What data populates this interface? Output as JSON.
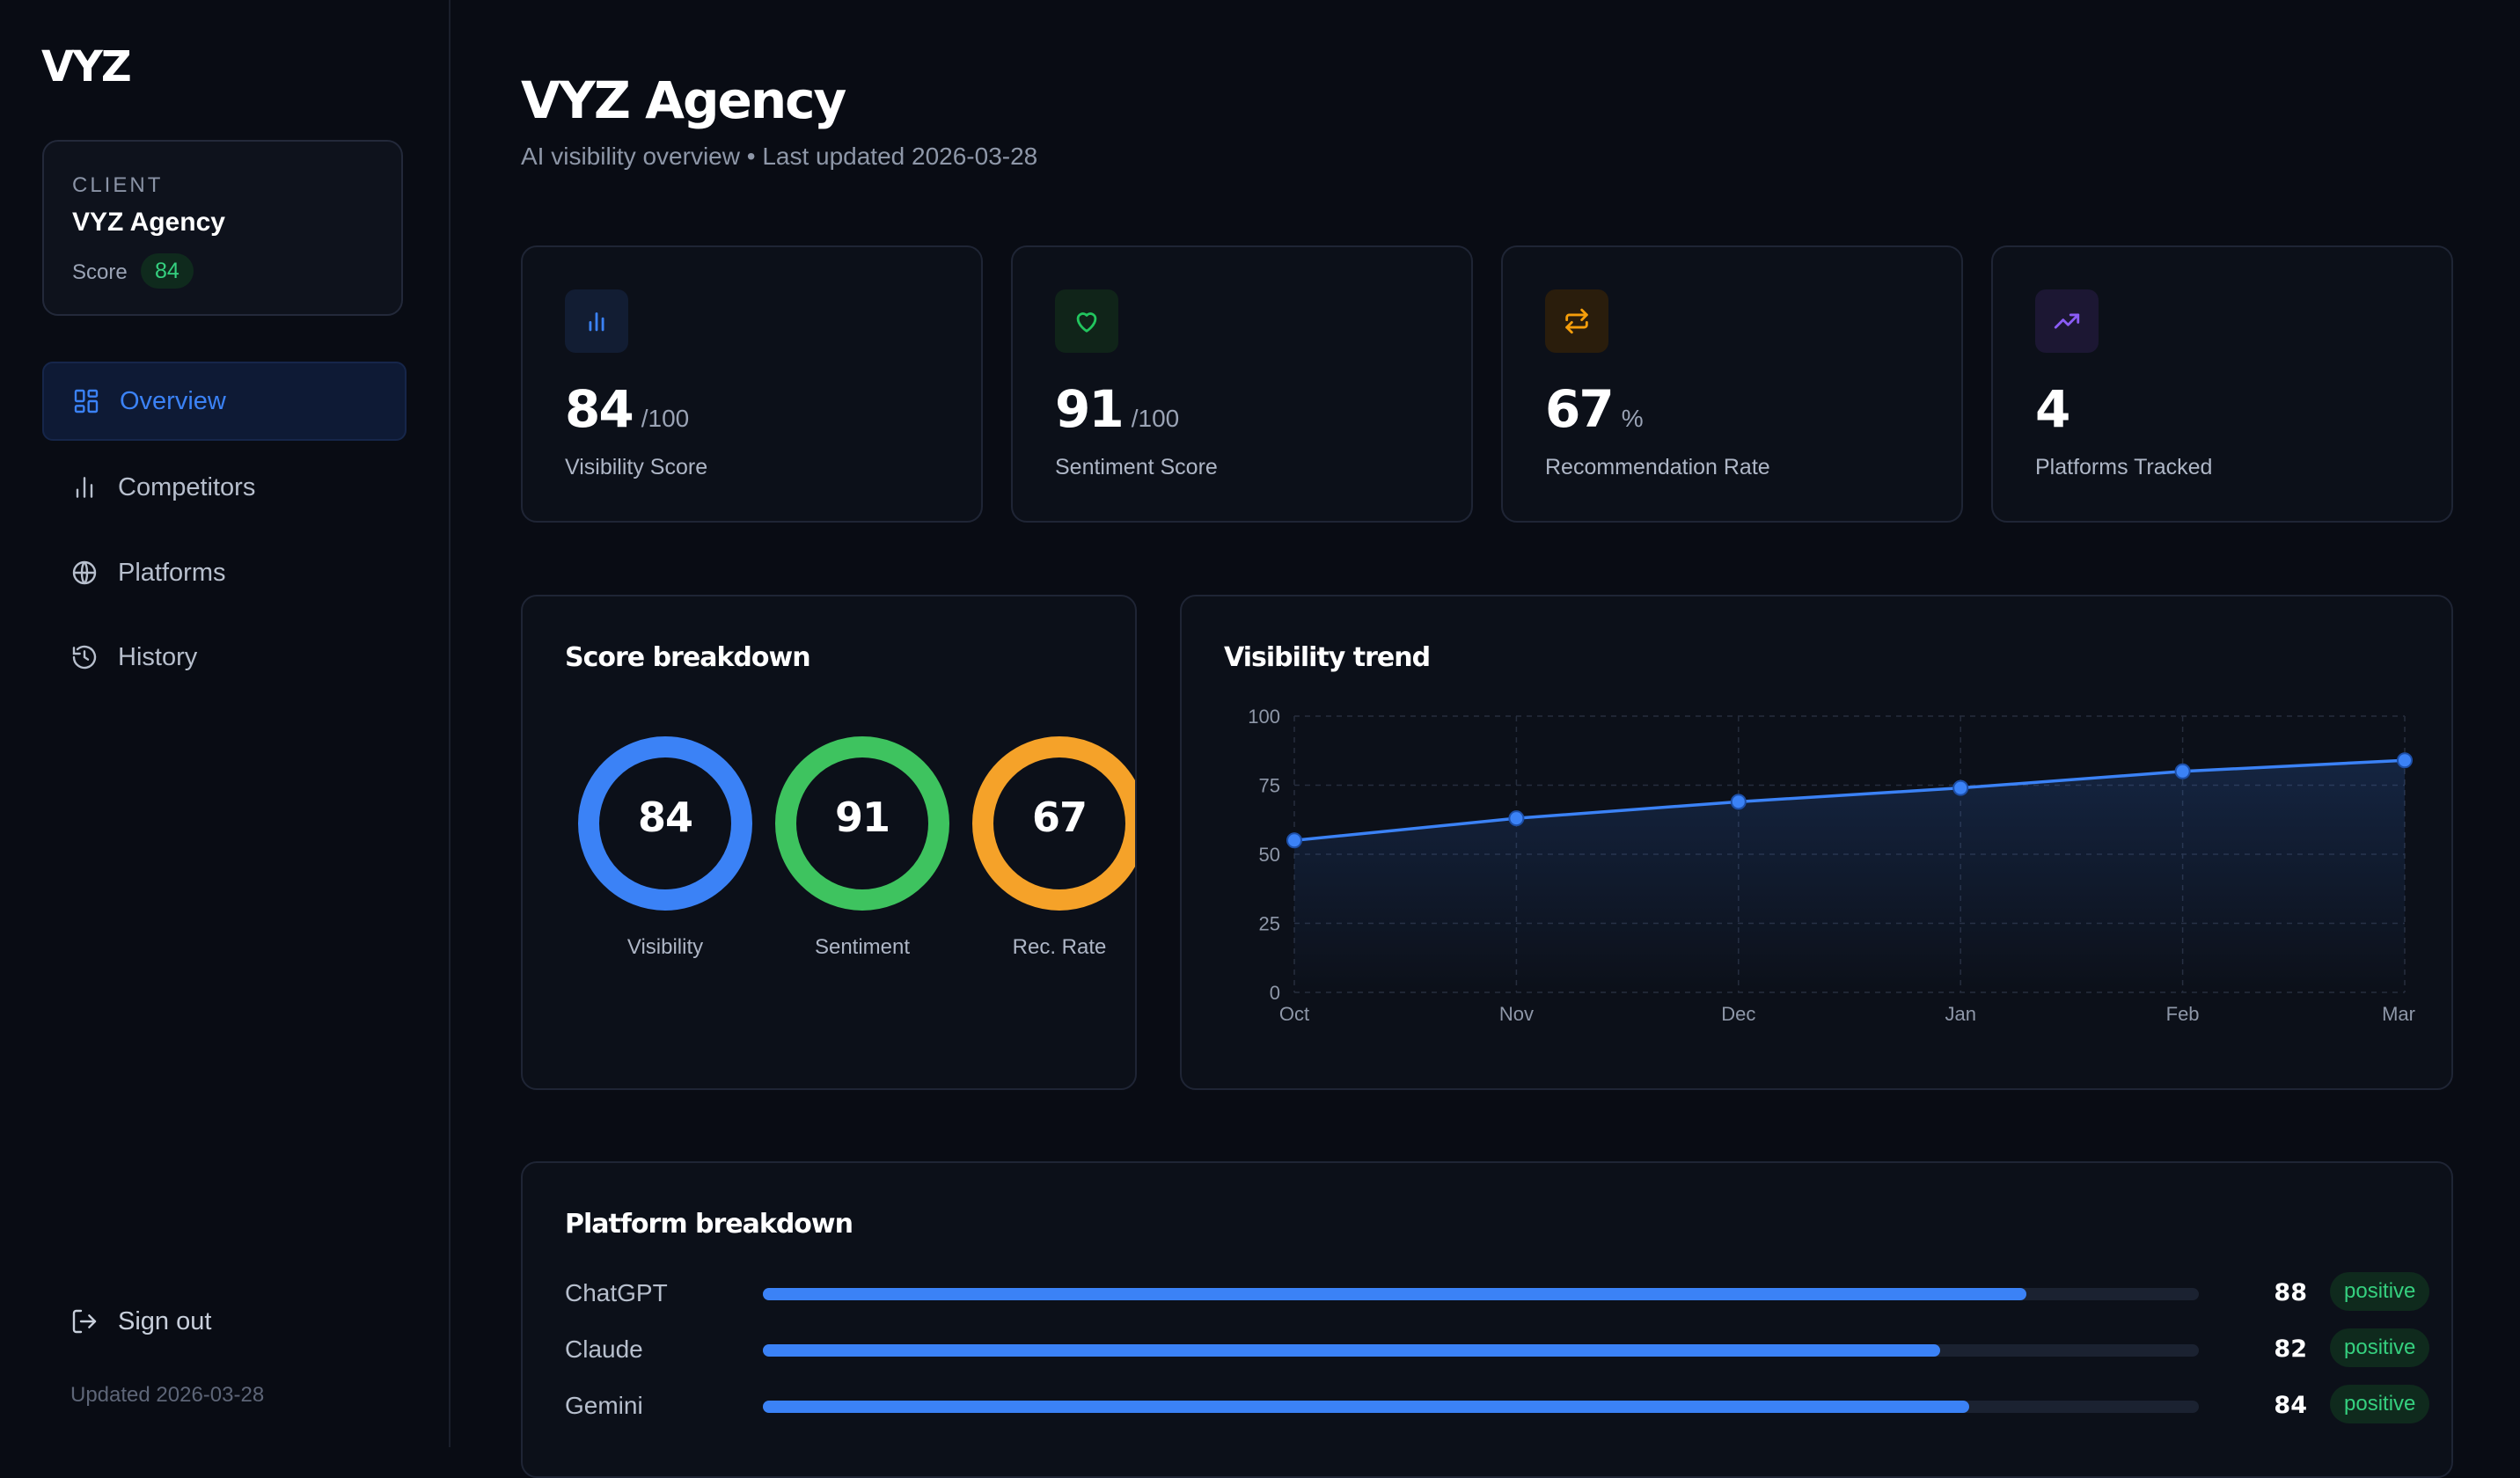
{
  "app": {
    "logo": "VYZ"
  },
  "client": {
    "caption": "CLIENT",
    "name": "VYZ Agency",
    "score_label": "Score",
    "score": "84"
  },
  "nav": {
    "items": [
      {
        "label": "Overview",
        "icon": "grid-icon",
        "active": true
      },
      {
        "label": "Competitors",
        "icon": "bar-chart-icon",
        "active": false
      },
      {
        "label": "Platforms",
        "icon": "globe-icon",
        "active": false
      },
      {
        "label": "History",
        "icon": "history-icon",
        "active": false
      }
    ],
    "sign_out": "Sign out",
    "updated": "Updated 2026-03-28"
  },
  "header": {
    "title": "VYZ Agency",
    "subtitle": "AI visibility overview • Last updated 2026-03-28"
  },
  "stats": [
    {
      "value": "84",
      "unit": "/100",
      "label": "Visibility Score",
      "icon": "bar-chart-icon",
      "color": "#3b82f6"
    },
    {
      "value": "91",
      "unit": "/100",
      "label": "Sentiment Score",
      "icon": "heart-icon",
      "color": "#22c55e"
    },
    {
      "value": "67",
      "unit": "%",
      "label": "Recommendation Rate",
      "icon": "repeat-icon",
      "color": "#f59e0b"
    },
    {
      "value": "4",
      "unit": "",
      "label": "Platforms Tracked",
      "icon": "trending-up-icon",
      "color": "#8b5cf6"
    }
  ],
  "score_breakdown": {
    "title": "Score breakdown",
    "gauges": [
      {
        "value": "84",
        "label": "Visibility",
        "color": "#3b82f6"
      },
      {
        "value": "91",
        "label": "Sentiment",
        "color": "#3ec35f"
      },
      {
        "value": "67",
        "label": "Rec. Rate",
        "color": "#f5a229"
      }
    ]
  },
  "trend": {
    "title": "Visibility trend"
  },
  "chart_data": {
    "type": "area",
    "title": "Visibility trend",
    "categories": [
      "Oct",
      "Nov",
      "Dec",
      "Jan",
      "Feb",
      "Mar"
    ],
    "values": [
      55,
      63,
      69,
      74,
      80,
      84
    ],
    "yticks": [
      "0",
      "25",
      "50",
      "75",
      "100"
    ],
    "ylim": [
      0,
      100
    ],
    "grid": true,
    "color": "#3b82f6"
  },
  "platform_breakdown": {
    "title": "Platform breakdown",
    "rows": [
      {
        "name": "ChatGPT",
        "score": "88",
        "sentiment": "positive"
      },
      {
        "name": "Claude",
        "score": "82",
        "sentiment": "positive"
      },
      {
        "name": "Gemini",
        "score": "84",
        "sentiment": "positive"
      }
    ]
  }
}
